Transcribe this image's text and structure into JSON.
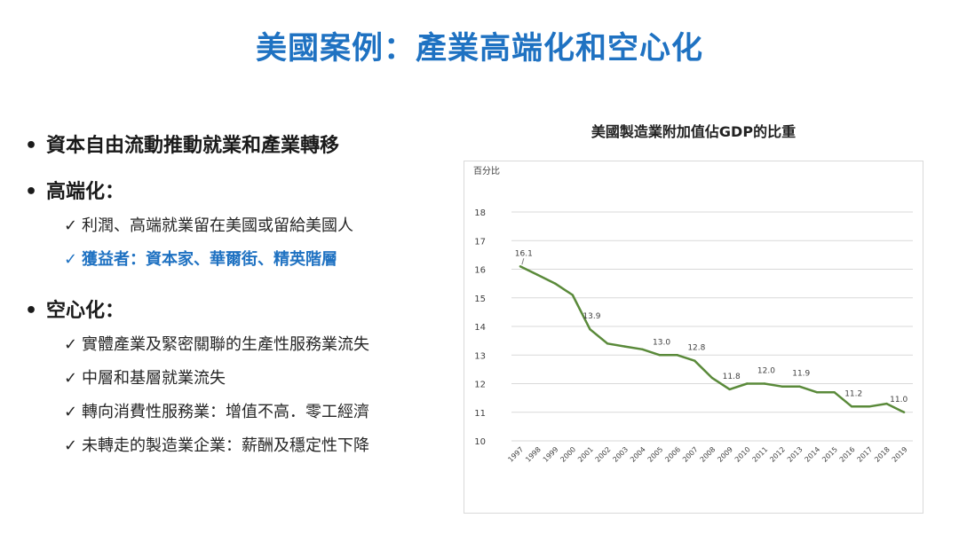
{
  "title": "美國案例：產業高端化和空心化",
  "bullets": [
    {
      "text": "資本自由流動推動就業和產業轉移",
      "subs": []
    },
    {
      "text": "高端化：",
      "subs": [
        {
          "text": "利潤、高端就業留在美國或留給美國人",
          "highlight": false
        },
        {
          "text": "獲益者：資本家、華爾街、精英階層",
          "highlight": true
        }
      ]
    },
    {
      "text": "空心化：",
      "subs": [
        {
          "text": "實體產業及緊密關聯的生產性服務業流失",
          "highlight": false
        },
        {
          "text": "中層和基層就業流失",
          "highlight": false
        },
        {
          "text": "轉向消費性服務業：增值不高．零工經濟",
          "highlight": false
        },
        {
          "text": "未轉走的製造業企業：薪酬及穩定性下降",
          "highlight": false
        }
      ]
    }
  ],
  "bullet_symbol": "•",
  "check_symbol": "✓",
  "colors": {
    "title": "#1f72c2",
    "highlight": "#1f72c2",
    "line": "#5a8a3a",
    "grid": "#d9d9d9"
  },
  "chart_data": {
    "type": "line",
    "title": "美國製造業附加值佔GDP的比重",
    "ylabel": "百分比",
    "xlabel": "",
    "ylim": [
      10,
      18
    ],
    "yticks": [
      "10",
      "11",
      "12",
      "13",
      "14",
      "15",
      "16",
      "17",
      "18"
    ],
    "grid": true,
    "categories": [
      "1997",
      "1998",
      "1999",
      "2000",
      "2001",
      "2002",
      "2003",
      "2004",
      "2005",
      "2006",
      "2007",
      "2008",
      "2009",
      "2010",
      "2011",
      "2012",
      "2013",
      "2014",
      "2015",
      "2016",
      "2017",
      "2018",
      "2019"
    ],
    "series": [
      {
        "values": [
          16.1,
          15.8,
          15.5,
          15.1,
          13.9,
          13.4,
          13.3,
          13.2,
          13.0,
          13.0,
          12.8,
          12.2,
          11.8,
          12.0,
          12.0,
          11.9,
          11.9,
          11.7,
          11.7,
          11.2,
          11.2,
          11.3,
          11.0
        ]
      }
    ],
    "data_labels": [
      {
        "index": 0,
        "text": "16.1"
      },
      {
        "index": 4,
        "text": "13.9"
      },
      {
        "index": 8,
        "text": "13.0"
      },
      {
        "index": 10,
        "text": "12.8"
      },
      {
        "index": 12,
        "text": "11.8"
      },
      {
        "index": 14,
        "text": "12.0"
      },
      {
        "index": 16,
        "text": "11.9"
      },
      {
        "index": 19,
        "text": "11.2"
      },
      {
        "index": 22,
        "text": "11.0"
      }
    ]
  }
}
